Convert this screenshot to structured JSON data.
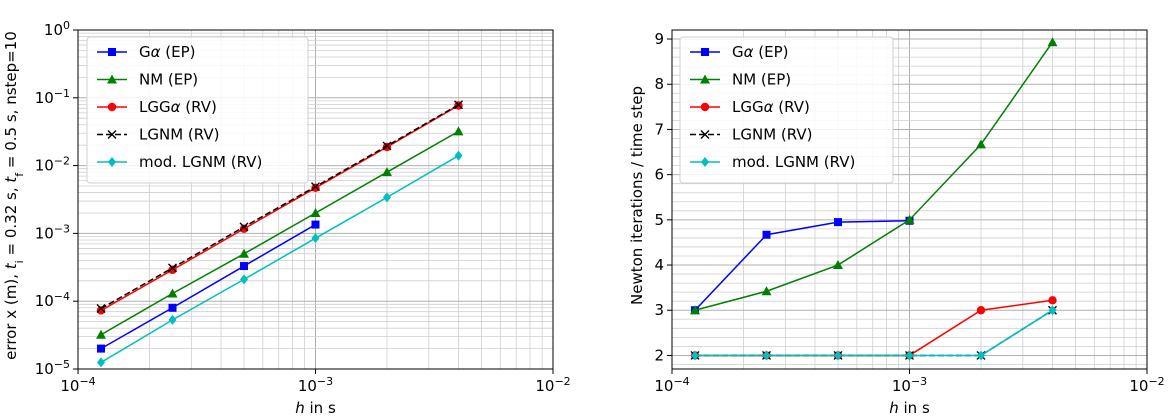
{
  "chart_data": [
    {
      "type": "line",
      "xscale": "log",
      "yscale": "log",
      "xlim": [
        0.0001,
        0.01
      ],
      "ylim": [
        1e-05,
        1
      ],
      "grid": "major and minor",
      "legend_placement": "top-left",
      "xlabel": {
        "pre": "",
        "italic": "h",
        "post": " in s"
      },
      "ylabel": {
        "parts": [
          {
            "t": "error x (m), ",
            "style": "normal"
          },
          {
            "t": "t",
            "style": "italic"
          },
          {
            "t": "i",
            "style": "sub"
          },
          {
            "t": " = 0.32 s, ",
            "style": "normal"
          },
          {
            "t": "t",
            "style": "italic"
          },
          {
            "t": "f",
            "style": "sub"
          },
          {
            "t": " = 0.5 s, nstep=10",
            "style": "normal"
          }
        ]
      },
      "xticks": [
        {
          "value": 0.0001,
          "base": "10",
          "exp": "−4"
        },
        {
          "value": 0.001,
          "base": "10",
          "exp": "−3"
        },
        {
          "value": 0.01,
          "base": "10",
          "exp": "−2"
        }
      ],
      "yticks": [
        {
          "value": 1e-05,
          "base": "10",
          "exp": "−5"
        },
        {
          "value": 0.0001,
          "base": "10",
          "exp": "−4"
        },
        {
          "value": 0.001,
          "base": "10",
          "exp": "−3"
        },
        {
          "value": 0.01,
          "base": "10",
          "exp": "−2"
        },
        {
          "value": 0.1,
          "base": "10",
          "exp": "−1"
        },
        {
          "value": 1,
          "base": "10",
          "exp": "0"
        }
      ],
      "x": [
        0.000125,
        0.00025,
        0.0005,
        0.001,
        0.002,
        0.004
      ],
      "series": [
        {
          "name": "Gα (EP)",
          "parts": [
            {
              "t": "G",
              "style": "normal"
            },
            {
              "t": "α",
              "style": "italic"
            },
            {
              "t": " (EP)",
              "style": "normal"
            }
          ],
          "color": "#0000ff",
          "marker": "square",
          "dash": "solid",
          "values": [
            2e-05,
            8e-05,
            0.00033,
            0.00135,
            null,
            null
          ]
        },
        {
          "name": "NM (EP)",
          "parts": [
            {
              "t": "NM (EP)",
              "style": "normal"
            }
          ],
          "color": "#008000",
          "marker": "triangle",
          "dash": "solid",
          "values": [
            3.2e-05,
            0.00013,
            0.0005,
            0.002,
            0.008,
            0.032
          ]
        },
        {
          "name": "LGGα (RV)",
          "parts": [
            {
              "t": "LGG",
              "style": "normal"
            },
            {
              "t": "α",
              "style": "italic"
            },
            {
              "t": " (RV)",
              "style": "normal"
            }
          ],
          "color": "#ff0000",
          "marker": "circle",
          "dash": "solid",
          "values": [
            7.3e-05,
            0.00029,
            0.00117,
            0.0047,
            0.0188,
            0.077
          ]
        },
        {
          "name": "LGNM (RV)",
          "parts": [
            {
              "t": "LGNM (RV)",
              "style": "normal"
            }
          ],
          "color": "#000000",
          "marker": "x",
          "dash": "dashed",
          "values": [
            7.8e-05,
            0.00031,
            0.00125,
            0.0049,
            0.0195,
            0.079
          ]
        },
        {
          "name": "mod. LGNM (RV)",
          "parts": [
            {
              "t": "mod. LGNM (RV)",
              "style": "normal"
            }
          ],
          "color": "#00bfbf",
          "marker": "diamond",
          "dash": "solid",
          "values": [
            1.25e-05,
            5.3e-05,
            0.00021,
            0.00085,
            0.0034,
            0.014
          ]
        }
      ]
    },
    {
      "type": "line",
      "xscale": "log",
      "yscale": "linear",
      "xlim": [
        0.0001,
        0.01
      ],
      "ylim": [
        1.7,
        9.2
      ],
      "grid": "major and minor",
      "legend_placement": "top-left",
      "xlabel": {
        "pre": "",
        "italic": "h",
        "post": " in s"
      },
      "ylabel": {
        "parts": [
          {
            "t": "Newton iterations / time step",
            "style": "normal"
          }
        ]
      },
      "xticks": [
        {
          "value": 0.0001,
          "base": "10",
          "exp": "−4"
        },
        {
          "value": 0.001,
          "base": "10",
          "exp": "−3"
        },
        {
          "value": 0.01,
          "base": "10",
          "exp": "−2"
        }
      ],
      "yticks": [
        {
          "value": 2,
          "label": "2"
        },
        {
          "value": 3,
          "label": "3"
        },
        {
          "value": 4,
          "label": "4"
        },
        {
          "value": 5,
          "label": "5"
        },
        {
          "value": 6,
          "label": "6"
        },
        {
          "value": 7,
          "label": "7"
        },
        {
          "value": 8,
          "label": "8"
        },
        {
          "value": 9,
          "label": "9"
        }
      ],
      "x": [
        0.000125,
        0.00025,
        0.0005,
        0.001,
        0.002,
        0.004
      ],
      "series": [
        {
          "name": "Gα (EP)",
          "parts": [
            {
              "t": "G",
              "style": "normal"
            },
            {
              "t": "α",
              "style": "italic"
            },
            {
              "t": " (EP)",
              "style": "normal"
            }
          ],
          "color": "#0000ff",
          "marker": "square",
          "dash": "solid",
          "values": [
            3.0,
            4.67,
            4.95,
            4.98,
            null,
            null
          ]
        },
        {
          "name": "NM (EP)",
          "parts": [
            {
              "t": "NM (EP)",
              "style": "normal"
            }
          ],
          "color": "#008000",
          "marker": "triangle",
          "dash": "solid",
          "values": [
            3.0,
            3.42,
            4.0,
            5.0,
            6.67,
            8.93
          ]
        },
        {
          "name": "LGGα (RV)",
          "parts": [
            {
              "t": "LGG",
              "style": "normal"
            },
            {
              "t": "α",
              "style": "italic"
            },
            {
              "t": " (RV)",
              "style": "normal"
            }
          ],
          "color": "#ff0000",
          "marker": "circle",
          "dash": "solid",
          "values": [
            2.0,
            2.0,
            2.0,
            2.0,
            3.0,
            3.22
          ]
        },
        {
          "name": "LGNM (RV)",
          "parts": [
            {
              "t": "LGNM (RV)",
              "style": "normal"
            }
          ],
          "color": "#000000",
          "marker": "x",
          "dash": "dashed",
          "values": [
            2.0,
            2.0,
            2.0,
            2.0,
            2.0,
            3.0
          ]
        },
        {
          "name": "mod. LGNM (RV)",
          "parts": [
            {
              "t": "mod. LGNM (RV)",
              "style": "normal"
            }
          ],
          "color": "#00bfbf",
          "marker": "diamond",
          "dash": "solid",
          "values": [
            2.0,
            2.0,
            2.0,
            2.0,
            2.0,
            3.0
          ]
        }
      ]
    }
  ]
}
